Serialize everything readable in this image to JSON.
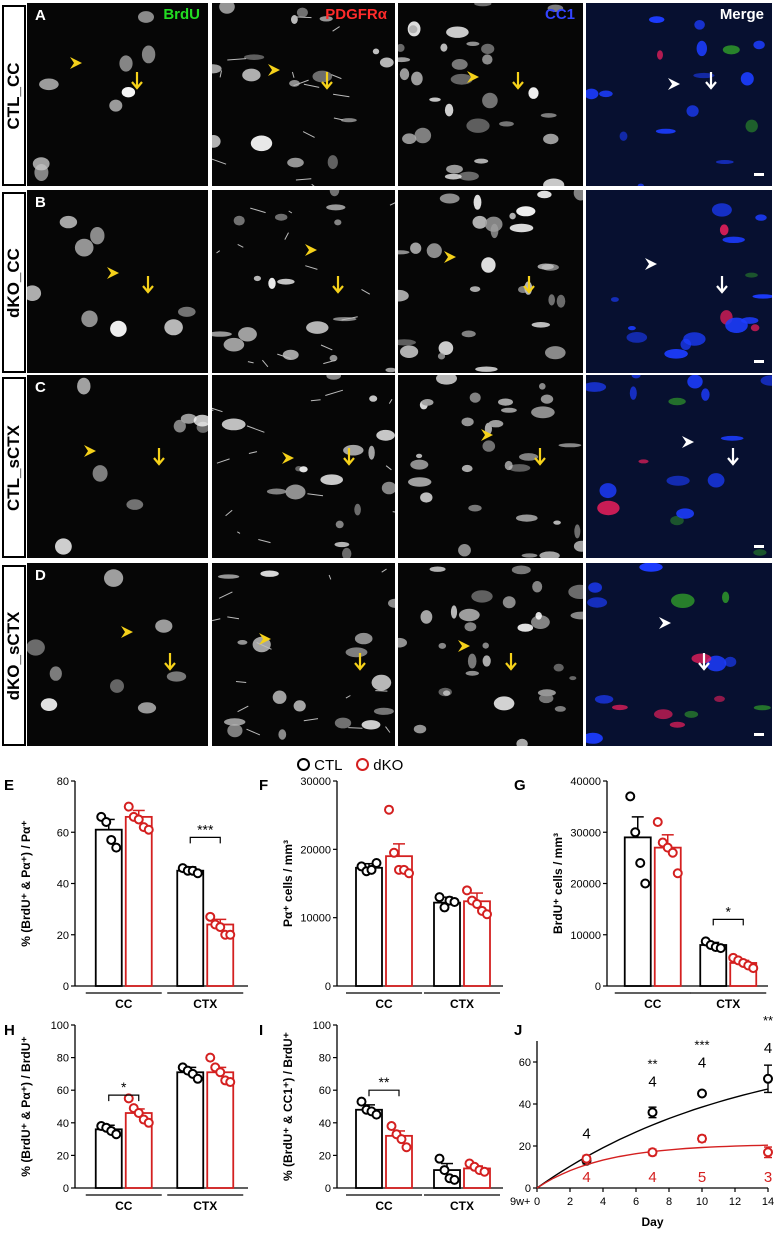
{
  "rows": [
    {
      "row_label": "CTL_CC",
      "panel": "A"
    },
    {
      "row_label": "dKO_CC",
      "panel": "B"
    },
    {
      "row_label": "CTL_sCTX",
      "panel": "C"
    },
    {
      "row_label": "dKO_sCTX",
      "panel": "D"
    }
  ],
  "channels": [
    {
      "label": "BrdU",
      "color": "#22dd22"
    },
    {
      "label": "PDGFRα",
      "color": "#ff2b2b"
    },
    {
      "label": "CC1",
      "color": "#3344ff"
    },
    {
      "label": "Merge",
      "color": "#ffffff"
    }
  ],
  "legend": {
    "ctl": "CTL",
    "dko": "dKO"
  },
  "colors": {
    "ctl": "#000000",
    "dko": "#d42020",
    "arrow": "#f5d11a"
  },
  "chart_data": [
    {
      "panel": "E",
      "type": "bar",
      "ylabel": "% (BrdU⁺ & Pα⁺) / Pα⁺",
      "ylim": [
        0,
        80
      ],
      "yticks": [
        "0",
        "20",
        "40",
        "60",
        "80"
      ],
      "groups": [
        "CC",
        "CTX"
      ],
      "series": [
        {
          "name": "CTL",
          "values": [
            61,
            45
          ],
          "sem": [
            4,
            1.5
          ],
          "points": [
            [
              66,
              64,
              57,
              54
            ],
            [
              46,
              45,
              45,
              44
            ]
          ]
        },
        {
          "name": "dKO",
          "values": [
            66,
            24
          ],
          "sem": [
            2.5,
            2
          ],
          "points": [
            [
              70,
              66,
              65,
              62,
              61
            ],
            [
              27,
              24,
              23,
              20,
              20
            ]
          ]
        }
      ],
      "sig": [
        {
          "group": 1,
          "label": "***",
          "y": 58
        }
      ]
    },
    {
      "panel": "F",
      "type": "bar",
      "ylabel": "Pα⁺ cells / mm³",
      "ylim": [
        0,
        30000
      ],
      "yticks": [
        "0",
        "10000",
        "20000",
        "30000"
      ],
      "groups": [
        "CC",
        "CTX"
      ],
      "series": [
        {
          "name": "CTL",
          "values": [
            17300,
            12200
          ],
          "sem": [
            600,
            800
          ],
          "points": [
            [
              17500,
              16800,
              17000,
              18000
            ],
            [
              13000,
              11500,
              12500,
              12300
            ]
          ]
        },
        {
          "name": "dKO",
          "values": [
            19000,
            12400
          ],
          "sem": [
            1800,
            1200
          ],
          "points": [
            [
              25800,
              19500,
              17000,
              17000,
              16500
            ],
            [
              14000,
              12500,
              12000,
              11000,
              10500
            ]
          ]
        }
      ],
      "sig": []
    },
    {
      "panel": "G",
      "type": "bar",
      "ylabel": "BrdU⁺ cells / mm³",
      "ylim": [
        0,
        40000
      ],
      "yticks": [
        "0",
        "10000",
        "20000",
        "30000",
        "40000"
      ],
      "groups": [
        "CC",
        "CTX"
      ],
      "series": [
        {
          "name": "CTL",
          "values": [
            29000,
            8000
          ],
          "sem": [
            4000,
            500
          ],
          "points": [
            [
              37000,
              30000,
              24000,
              20000
            ],
            [
              8700,
              8000,
              7600,
              7400
            ]
          ]
        },
        {
          "name": "dKO",
          "values": [
            27000,
            4500
          ],
          "sem": [
            2500,
            500
          ],
          "points": [
            [
              32000,
              28000,
              27000,
              26000,
              22000
            ],
            [
              5500,
              5000,
              4500,
              4000,
              3500
            ]
          ]
        }
      ],
      "sig": [
        {
          "group": 1,
          "label": "*",
          "y": 13000
        }
      ]
    },
    {
      "panel": "H",
      "type": "bar",
      "ylabel": "% (BrdU⁺ & Pα⁺) / BrdU⁺",
      "ylim": [
        0,
        100
      ],
      "yticks": [
        "0",
        "20",
        "40",
        "60",
        "80",
        "100"
      ],
      "groups": [
        "CC",
        "CTX"
      ],
      "series": [
        {
          "name": "CTL",
          "values": [
            36,
            71
          ],
          "sem": [
            2.5,
            3
          ],
          "points": [
            [
              38,
              37,
              35,
              33
            ],
            [
              74,
              72,
              70,
              67
            ]
          ]
        },
        {
          "name": "dKO",
          "values": [
            46,
            71
          ],
          "sem": [
            2.5,
            3
          ],
          "points": [
            [
              55,
              49,
              46,
              42,
              40
            ],
            [
              80,
              74,
              71,
              66,
              65
            ]
          ]
        }
      ],
      "sig": [
        {
          "group": 0,
          "label": "*",
          "y": 57
        }
      ]
    },
    {
      "panel": "I",
      "type": "bar",
      "ylabel": "% (BrdU⁺ & CC1⁺) / BrdU⁺",
      "ylim": [
        0,
        100
      ],
      "yticks": [
        "0",
        "20",
        "40",
        "60",
        "80",
        "100"
      ],
      "groups": [
        "CC",
        "CTX"
      ],
      "series": [
        {
          "name": "CTL",
          "values": [
            48,
            11
          ],
          "sem": [
            3,
            4
          ],
          "points": [
            [
              53,
              48,
              47,
              45
            ],
            [
              18,
              11,
              6,
              5
            ]
          ]
        },
        {
          "name": "dKO",
          "values": [
            32,
            12
          ],
          "sem": [
            3,
            1.5
          ],
          "points": [
            [
              38,
              33,
              30,
              25
            ],
            [
              15,
              13,
              11,
              10
            ]
          ]
        }
      ],
      "sig": [
        {
          "group": 0,
          "label": "**",
          "y": 60
        }
      ]
    },
    {
      "panel": "J",
      "type": "line",
      "ylabel": "% (BrdU⁺ & Pα⁺) / Pα⁺",
      "xlabel": "Day",
      "xprefix": "9w+",
      "xlim": [
        0,
        14
      ],
      "ylim": [
        0,
        70
      ],
      "xticks": [
        "0",
        "2",
        "4",
        "6",
        "8",
        "10",
        "12",
        "14"
      ],
      "yticks": [
        "0",
        "20",
        "40",
        "60"
      ],
      "series": [
        {
          "name": "CTL",
          "x": [
            3,
            7,
            10,
            14
          ],
          "y": [
            13,
            36,
            45,
            52
          ],
          "sem": [
            1.5,
            2.5,
            1,
            6.5
          ],
          "n": [
            "4",
            "4",
            "4",
            "4"
          ]
        },
        {
          "name": "dKO",
          "x": [
            3,
            7,
            10,
            14
          ],
          "y": [
            14,
            17,
            23.5,
            17
          ],
          "sem": [
            1.5,
            1.5,
            1.5,
            2.5
          ],
          "n": [
            "4",
            "4",
            "5",
            "3"
          ]
        }
      ],
      "sig": [
        {
          "x": 7,
          "label": "**"
        },
        {
          "x": 10,
          "label": "***"
        },
        {
          "x": 14,
          "label": "**"
        }
      ]
    }
  ]
}
